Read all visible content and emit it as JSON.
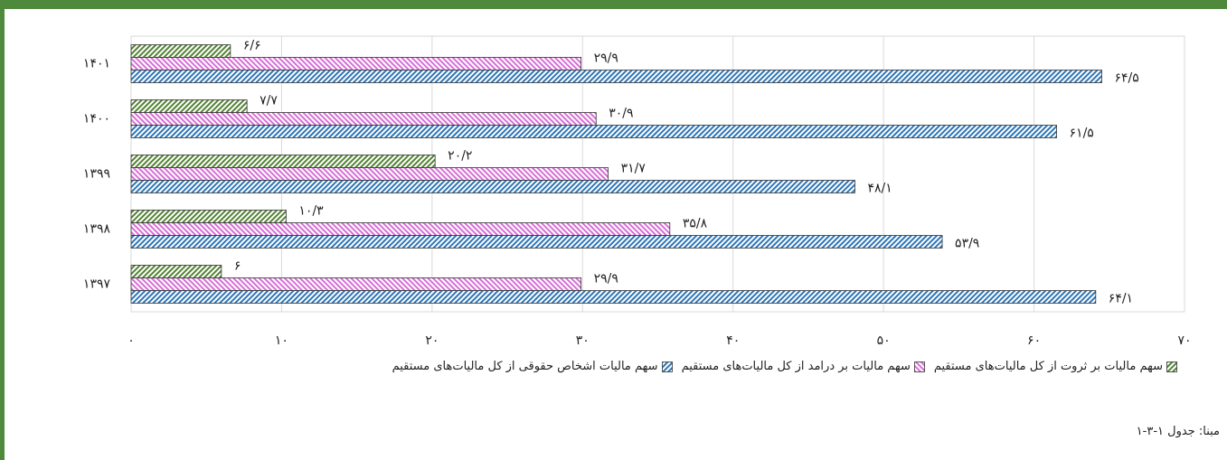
{
  "chart_data": {
    "type": "hbar",
    "categories": [
      "۱۴۰۱",
      "۱۴۰۰",
      "۱۳۹۹",
      "۱۳۹۸",
      "۱۳۹۷"
    ],
    "series": [
      {
        "name": "سهم مالیات بر ثروت از کل مالیات‌های مستقیم",
        "color": "#548235",
        "values": [
          6.6,
          7.7,
          20.2,
          10.3,
          6
        ],
        "value_labels": [
          "۶/۶",
          "۷/۷",
          "۲۰/۲",
          "۱۰/۳",
          "۶"
        ]
      },
      {
        "name": "سهم مالیات بر درامد از کل مالیات‌های مستقیم",
        "color": "#d66fd6",
        "values": [
          29.9,
          30.9,
          31.7,
          35.8,
          29.9
        ],
        "value_labels": [
          "۲۹/۹",
          "۳۰/۹",
          "۳۱/۷",
          "۳۵/۸",
          "۲۹/۹"
        ]
      },
      {
        "name": "سهم مالیات اشخاص حقوقی از کل مالیات‌های مستقیم",
        "color": "#2e75b6",
        "values": [
          64.5,
          61.5,
          48.1,
          53.9,
          64.1
        ],
        "value_labels": [
          "۶۴/۵",
          "۶۱/۵",
          "۴۸/۱",
          "۵۳/۹",
          "۶۴/۱"
        ]
      }
    ],
    "xlim": [
      0,
      70
    ],
    "xticks": [
      {
        "value": 0,
        "label": "۰"
      },
      {
        "value": 10,
        "label": "۱۰"
      },
      {
        "value": 20,
        "label": "۲۰"
      },
      {
        "value": 30,
        "label": "۳۰"
      },
      {
        "value": 40,
        "label": "۴۰"
      },
      {
        "value": 50,
        "label": "۵۰"
      },
      {
        "value": 60,
        "label": "۶۰"
      },
      {
        "value": 70,
        "label": "۷۰"
      }
    ],
    "grid": true,
    "legend": "bottom",
    "source": "مبنا: جدول ۱-۳-۱"
  }
}
